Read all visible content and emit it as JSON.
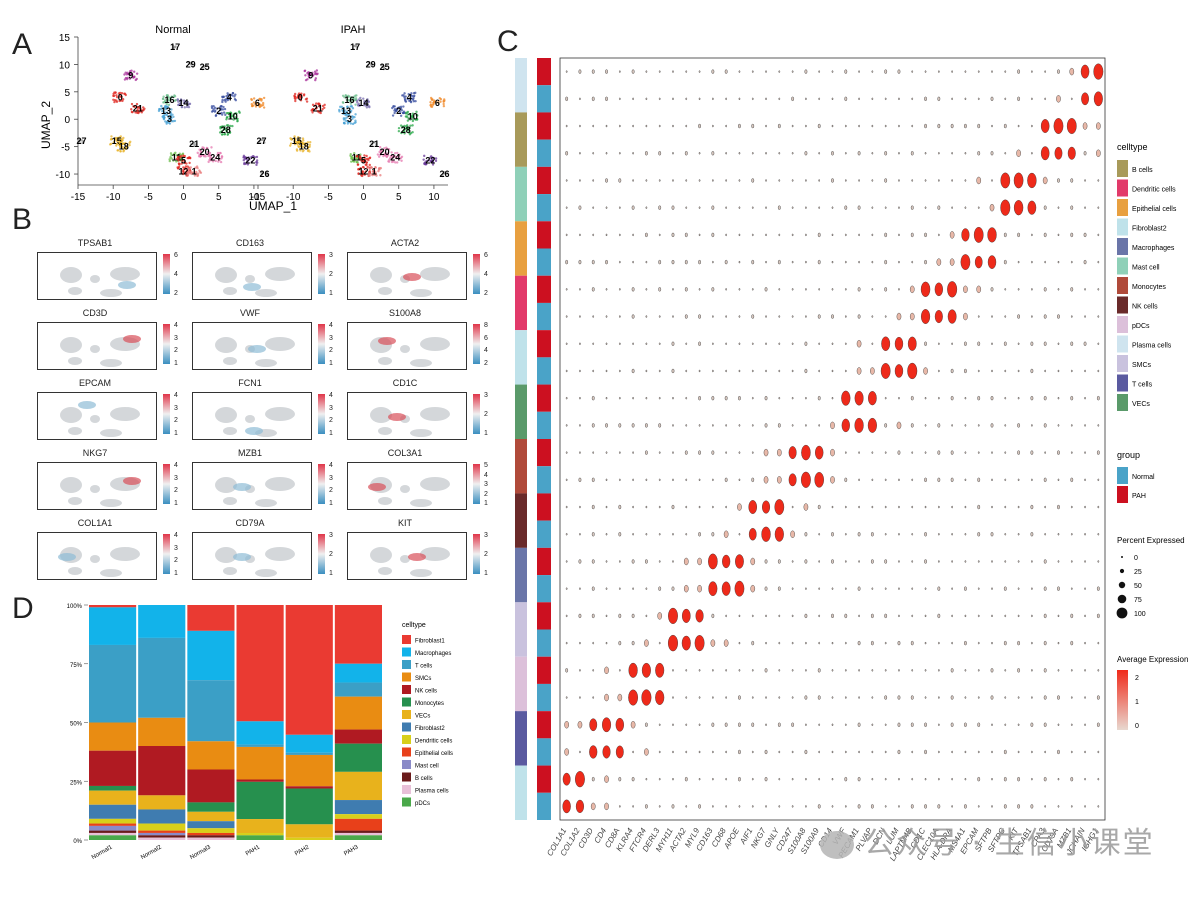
{
  "panels": {
    "a": "A",
    "b": "B",
    "c": "C",
    "d": "D"
  },
  "panel_a": {
    "titles": [
      "Normal",
      "IPAH"
    ],
    "xlabel": "UMAP_1",
    "ylabel": "UMAP_2",
    "xticks": [
      "-15",
      "-10",
      "-5",
      "0",
      "5",
      "10"
    ],
    "yticks": [
      "15",
      "10",
      "5",
      "0",
      "-5",
      "-10"
    ],
    "clusters": [
      {
        "id": "17",
        "x": -1.2,
        "y": 13.2,
        "color": "#9a9a9a"
      },
      {
        "id": "29",
        "x": 1.0,
        "y": 10.0,
        "color": "#9a9a9a"
      },
      {
        "id": "25",
        "x": 3.0,
        "y": 9.5,
        "color": "#9a9a9a"
      },
      {
        "id": "9",
        "x": -7.5,
        "y": 8.0,
        "color": "#a8309a"
      },
      {
        "id": "0",
        "x": -9.0,
        "y": 4.0,
        "color": "#e0261f"
      },
      {
        "id": "21",
        "x": -6.5,
        "y": 2.0,
        "color": "#e0261f"
      },
      {
        "id": "16",
        "x": -2.0,
        "y": 3.5,
        "color": "#6fbf8f"
      },
      {
        "id": "14",
        "x": 0.0,
        "y": 3.0,
        "color": "#7a6fb0"
      },
      {
        "id": "13",
        "x": -2.5,
        "y": 1.5,
        "color": "#4aa3d6"
      },
      {
        "id": "3",
        "x": -2.0,
        "y": 0.0,
        "color": "#4aa3d6"
      },
      {
        "id": "4",
        "x": 6.5,
        "y": 4.0,
        "color": "#3a4fa0"
      },
      {
        "id": "2",
        "x": 5.0,
        "y": 1.5,
        "color": "#3a4fa0"
      },
      {
        "id": "10",
        "x": 7.0,
        "y": 0.5,
        "color": "#2aa84a"
      },
      {
        "id": "6",
        "x": 10.5,
        "y": 3.0,
        "color": "#f08a2a"
      },
      {
        "id": "28",
        "x": 6.0,
        "y": -2.0,
        "color": "#2aa84a"
      },
      {
        "id": "27",
        "x": -14.5,
        "y": -4.0,
        "color": "#9a9a9a"
      },
      {
        "id": "15",
        "x": -9.5,
        "y": -4.0,
        "color": "#e8b32a"
      },
      {
        "id": "18",
        "x": -8.5,
        "y": -5.0,
        "color": "#e8b32a"
      },
      {
        "id": "21b",
        "x": 1.5,
        "y": -4.5,
        "color": "#9a9a9a"
      },
      {
        "id": "20",
        "x": 3.0,
        "y": -6.0,
        "color": "#e67ab0"
      },
      {
        "id": "24",
        "x": 4.5,
        "y": -7.0,
        "color": "#e67ab0"
      },
      {
        "id": "11",
        "x": -1.0,
        "y": -7.0,
        "color": "#6fbf4f"
      },
      {
        "id": "5",
        "x": 0.0,
        "y": -7.5,
        "color": "#e0261f"
      },
      {
        "id": "12",
        "x": 0.0,
        "y": -9.5,
        "color": "#e0261f"
      },
      {
        "id": "1",
        "x": 1.5,
        "y": -9.5,
        "color": "#e87a7a"
      },
      {
        "id": "22",
        "x": 9.5,
        "y": -7.5,
        "color": "#6a3a9a"
      },
      {
        "id": "26",
        "x": 11.5,
        "y": -10.0,
        "color": "#9a9a9a"
      }
    ]
  },
  "panel_b": {
    "genes": [
      "TPSAB1",
      "CD163",
      "ACTA2",
      "CD3D",
      "VWF",
      "S100A8",
      "EPCAM",
      "FCN1",
      "CD1C",
      "NKG7",
      "MZB1",
      "COL3A1",
      "COL1A1",
      "CD79A",
      "KIT"
    ],
    "scales": [
      [
        "6",
        "4",
        "2"
      ],
      [
        "3",
        "2",
        "1"
      ],
      [
        "6",
        "4",
        "2"
      ],
      [
        "4",
        "3",
        "2",
        "1"
      ],
      [
        "4",
        "3",
        "2",
        "1"
      ],
      [
        "8",
        "6",
        "4",
        "2"
      ],
      [
        "4",
        "3",
        "2",
        "1"
      ],
      [
        "4",
        "3",
        "2",
        "1"
      ],
      [
        "3",
        "2",
        "1"
      ],
      [
        "4",
        "3",
        "2",
        "1"
      ],
      [
        "4",
        "3",
        "2",
        "1"
      ],
      [
        "5",
        "4",
        "3",
        "2",
        "1"
      ],
      [
        "4",
        "3",
        "2",
        "1"
      ],
      [
        "3",
        "2",
        "1"
      ],
      [
        "3",
        "2",
        "1"
      ]
    ]
  },
  "panel_c": {
    "genes": [
      "COL1A1",
      "COL1A2",
      "CD3D",
      "CD4",
      "CD8A",
      "KLRA4",
      "FTCR4",
      "DERL3",
      "MYH11",
      "ACTA2",
      "MYL9",
      "CD163",
      "CD68",
      "APOE",
      "AIF1",
      "NKG7",
      "GNLY",
      "CD247",
      "S100A8",
      "S100A9",
      "CD14",
      "VWF",
      "PECAM1",
      "PLVAP",
      "DCN",
      "LUM",
      "LAPTM4B",
      "CD1C",
      "CLEC10A",
      "HLA-DRA",
      "MS4A1",
      "EPCAM",
      "SFTPB",
      "SFTPC",
      "KIT",
      "TPSAB1",
      "CPA3",
      "CD79A",
      "MZB1",
      "JCHAIN",
      "IGHG1"
    ],
    "legend": {
      "celltype_title": "celltype",
      "celltypes": [
        {
          "name": "B cells",
          "color": "#a89a5a"
        },
        {
          "name": "Dendritic cells",
          "color": "#e23a6a"
        },
        {
          "name": "Epithelial cells",
          "color": "#e8a040"
        },
        {
          "name": "Fibroblast2",
          "color": "#bfe2ea"
        },
        {
          "name": "Macrophages",
          "color": "#6a75a8"
        },
        {
          "name": "Mast cell",
          "color": "#8fd0b8"
        },
        {
          "name": "Monocytes",
          "color": "#b04a3a"
        },
        {
          "name": "NK cells",
          "color": "#6a2a2a"
        },
        {
          "name": "pDCs",
          "color": "#dcc0da"
        },
        {
          "name": "Plasma cells",
          "color": "#cfe4ef"
        },
        {
          "name": "SMCs",
          "color": "#c9c2de"
        },
        {
          "name": "T cells",
          "color": "#5a5aa0"
        },
        {
          "name": "VECs",
          "color": "#5a9a6a"
        }
      ],
      "group_title": "group",
      "groups": [
        {
          "name": "Normal",
          "color": "#4aa3c8"
        },
        {
          "name": "PAH",
          "color": "#cc1020"
        }
      ],
      "pct_title": "Percent Expressed",
      "pct_values": [
        "0",
        "25",
        "50",
        "75",
        "100"
      ],
      "avg_title": "Average Expression",
      "avg_ticks": [
        "2",
        "1",
        "0"
      ],
      "avg_colors": [
        "#f02a1a",
        "#e8d8d0"
      ]
    },
    "row_celltypes": [
      "Plasma cells",
      "B cells",
      "Mast cell",
      "Epithelial cells",
      "Dendritic cells",
      "Fibroblast2",
      "VECs",
      "Monocytes",
      "NK cells",
      "Macrophages",
      "SMCs",
      "pDCs",
      "T cells",
      "Fibroblast2"
    ]
  },
  "chart_data": {
    "type": "bar",
    "title": "",
    "xlabel": "",
    "ylabel": "",
    "ylim": [
      0,
      100
    ],
    "yticks": [
      "0%",
      "25%",
      "50%",
      "75%",
      "100%"
    ],
    "legend_title": "celltype",
    "legend_position": "right",
    "categories": [
      "Normal1",
      "Normal2",
      "Normal3",
      "PAH1",
      "PAH2",
      "PAH3"
    ],
    "series": [
      {
        "name": "Fibroblast1",
        "color": "#ea3a32",
        "values": [
          1,
          0,
          11,
          50,
          58,
          25
        ]
      },
      {
        "name": "Macrophages",
        "color": "#12b3ea",
        "values": [
          16,
          14,
          21,
          10,
          8,
          8
        ]
      },
      {
        "name": "T cells",
        "color": "#3b9fc6",
        "values": [
          33,
          34,
          26,
          1,
          1,
          6
        ]
      },
      {
        "name": "SMCs",
        "color": "#e98c12",
        "values": [
          12,
          12,
          12,
          14,
          14,
          14
        ]
      },
      {
        "name": "NK cells",
        "color": "#b01a22",
        "values": [
          15,
          21,
          14,
          1,
          1,
          6
        ]
      },
      {
        "name": "Monocytes",
        "color": "#26904e",
        "values": [
          2,
          0,
          4,
          16,
          16,
          12
        ]
      },
      {
        "name": "VECs",
        "color": "#e8b21c",
        "values": [
          6,
          6,
          4,
          6,
          6,
          12
        ]
      },
      {
        "name": "Fibroblast2",
        "color": "#3f7cb0",
        "values": [
          6,
          6,
          3,
          0,
          0,
          6
        ]
      },
      {
        "name": "Dendritic cells",
        "color": "#d8cf1a",
        "values": [
          2,
          3,
          2,
          1,
          1,
          2
        ]
      },
      {
        "name": "Epithelial cells",
        "color": "#e8401a",
        "values": [
          1,
          1,
          1,
          0,
          0,
          5
        ]
      },
      {
        "name": "Mast cell",
        "color": "#8a8ac8",
        "values": [
          2,
          1,
          0,
          0,
          0,
          0
        ]
      },
      {
        "name": "B cells",
        "color": "#6a1a1a",
        "values": [
          1,
          1,
          1,
          0,
          0,
          1
        ]
      },
      {
        "name": "Plasma cells",
        "color": "#e8c0d8",
        "values": [
          1,
          1,
          1,
          0,
          0,
          1
        ]
      },
      {
        "name": "pDCs",
        "color": "#4aa84a",
        "values": [
          2,
          0,
          0,
          2,
          0,
          2
        ]
      }
    ]
  },
  "watermark": "公众号 · 生信小课堂"
}
